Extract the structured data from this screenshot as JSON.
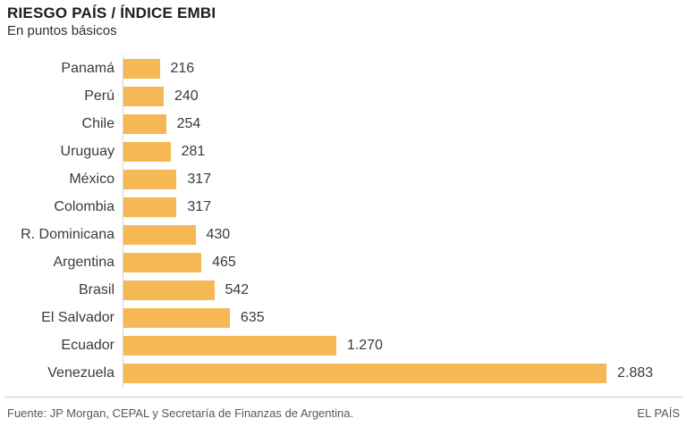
{
  "header": {
    "title": "RIESGO PAÍS / ÍNDICE EMBI",
    "subtitle": "En puntos básicos"
  },
  "chart_data": {
    "type": "bar",
    "orientation": "horizontal",
    "title": "RIESGO PAÍS / ÍNDICE EMBI",
    "subtitle": "En puntos básicos",
    "unit": "puntos básicos",
    "xlabel": "",
    "ylabel": "",
    "xlim": [
      0,
      2883
    ],
    "grid": false,
    "legend": "none",
    "value_labels": "right-of-bar",
    "categories": [
      "Panamá",
      "Perú",
      "Chile",
      "Uruguay",
      "México",
      "Colombia",
      "R. Dominicana",
      "Argentina",
      "Brasil",
      "El Salvador",
      "Ecuador",
      "Venezuela"
    ],
    "values": [
      216,
      240,
      254,
      281,
      317,
      317,
      430,
      465,
      542,
      635,
      1270,
      2883
    ],
    "display_values": [
      "216",
      "240",
      "254",
      "281",
      "317",
      "317",
      "430",
      "465",
      "542",
      "635",
      "1.270",
      "2.883"
    ]
  },
  "footer": {
    "source": "Fuente: JP Morgan, CEPAL y Secretaría de Finanzas de Argentina.",
    "credit": "EL PAÍS"
  },
  "colors": {
    "bar": "#f5b855",
    "axis_line": "#d6d6d6",
    "text": "#3a3a3a",
    "title_text": "#1c1c1c",
    "footer_text": "#55585c",
    "divider": "#c9c9c9",
    "background": "#ffffff"
  }
}
